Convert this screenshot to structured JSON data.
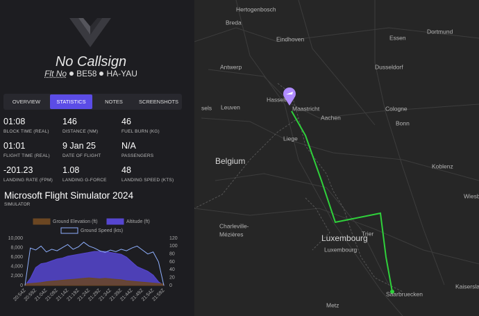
{
  "header": {
    "callsign": "No Callsign",
    "flight": {
      "prefix": "Flt No",
      "number": "BE58",
      "registration": "HA-YAU"
    }
  },
  "tabs": {
    "items": [
      "OVERVIEW",
      "STATISTICS",
      "NOTES",
      "SCREENSHOTS"
    ],
    "active": 1
  },
  "stats": [
    {
      "value": "01:08",
      "label": "BLOCK TIME (REAL)"
    },
    {
      "value": "146",
      "label": "DISTANCE (NM)"
    },
    {
      "value": "46",
      "label": "FUEL BURN (KG)"
    },
    {
      "value": "01:01",
      "label": "FLIGHT TIME (REAL)"
    },
    {
      "value": "9 Jan 25",
      "label": "DATE OF FLIGHT"
    },
    {
      "value": "N/A",
      "label": "PASSENGERS"
    },
    {
      "value": "-201.23",
      "label": "LANDING RATE (FPM)"
    },
    {
      "value": "1.08",
      "label": "LANDING G-FORCE"
    },
    {
      "value": "48",
      "label": "LANDING SPEED (KTS)"
    }
  ],
  "simulator": {
    "value": "Microsoft Flight Simulator 2024",
    "label": "SIMULATOR"
  },
  "chart_data": {
    "type": "area",
    "categories": [
      "20:54Z",
      null,
      "20:59Z",
      null,
      "21:04Z",
      null,
      "21:09Z",
      null,
      "21:14Z",
      null,
      "21:19Z",
      null,
      "21:24Z",
      null,
      "21:29Z",
      null,
      "21:34Z",
      null,
      "21:39Z",
      null,
      "21:44Z",
      null,
      "21:49Z",
      null,
      "21:54Z",
      null,
      "21:59Z"
    ],
    "series": [
      {
        "name": "Ground Elevation (ft)",
        "color": "#6b4622",
        "values": [
          300,
          400,
          500,
          600,
          800,
          900,
          1000,
          1100,
          1200,
          1300,
          1400,
          1500,
          1600,
          1500,
          1400,
          1500,
          1400,
          1300,
          1200,
          1000,
          900,
          800,
          700,
          600,
          500,
          400,
          300
        ]
      },
      {
        "name": "Altitude (ft)",
        "color": "#5646d0",
        "values": [
          0,
          1500,
          3800,
          4600,
          4800,
          5200,
          5600,
          5800,
          6200,
          6400,
          6600,
          6800,
          7000,
          7200,
          7200,
          7200,
          7000,
          6800,
          6600,
          6000,
          5000,
          4000,
          3500,
          3000,
          2200,
          800,
          0
        ]
      },
      {
        "name": "Ground Speed (kts)",
        "color": "#8fb0ff",
        "type": "line",
        "axis": "y2",
        "values": [
          0,
          95,
          90,
          100,
          85,
          92,
          88,
          96,
          104,
          92,
          98,
          110,
          100,
          95,
          88,
          84,
          90,
          86,
          92,
          88,
          95,
          100,
          90,
          80,
          85,
          60,
          0
        ]
      }
    ],
    "ylim": [
      0,
      10000
    ],
    "yticks": [
      0,
      {
        "value": 2000,
        "label": "2,000"
      },
      {
        "value": 4000,
        "label": "4,000"
      },
      {
        "value": 6000,
        "label": "6,000"
      },
      {
        "value": 8000,
        "label": "8,000"
      },
      {
        "value": 10000,
        "label": "10,000"
      }
    ],
    "y2lim": [
      0,
      120
    ],
    "y2ticks": [
      0,
      20,
      40,
      60,
      80,
      100,
      120
    ],
    "grid": false
  },
  "map": {
    "labels": [
      "Hertogenbosch",
      "Breda",
      "Eindhoven",
      "Essen",
      "Dortmund",
      "Antwerp",
      "Dusseldorf",
      "Hasselt",
      "Maastricht",
      "sels",
      "Leuven",
      "Aachen",
      "Cologne",
      "Bonn",
      "Liege",
      "Belgium",
      "Koblenz",
      "Wiesb",
      "Luxembourg",
      "Luxembourg",
      "Charleville-",
      "Mézières",
      "Trier",
      "Kaiserslautern",
      "Saarbruecken",
      "Metz"
    ]
  }
}
